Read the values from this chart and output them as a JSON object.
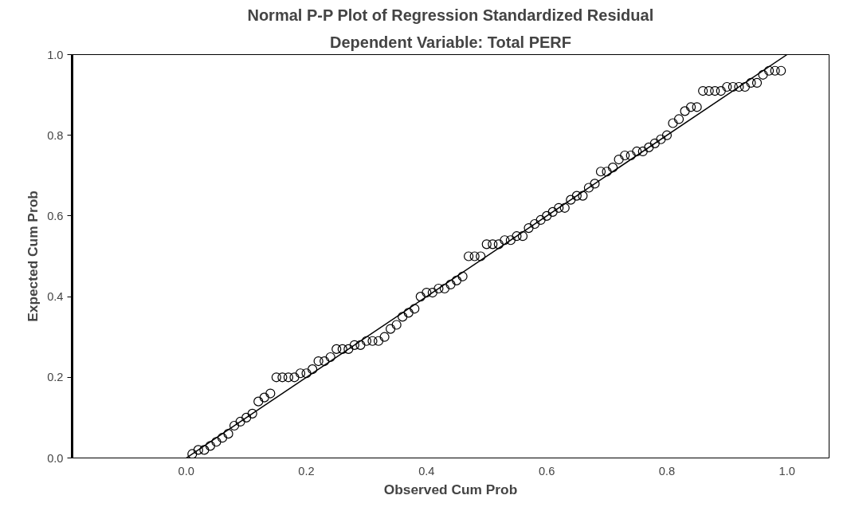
{
  "chart_data": {
    "type": "scatter",
    "title": "Normal P-P Plot of Regression Standardized Residual",
    "subtitle": "Dependent Variable: Total PERF",
    "xlabel": "Observed Cum Prob",
    "ylabel": "Expected Cum Prob",
    "xlim": [
      -0.19,
      1.07
    ],
    "ylim": [
      0,
      1
    ],
    "xticks": [
      {
        "value": 0,
        "label": "0.0"
      },
      0.2,
      0.4,
      0.6,
      0.8,
      {
        "value": 1,
        "label": "1.0"
      }
    ],
    "yticks": [
      {
        "value": 0,
        "label": "0.0"
      },
      0.2,
      0.4,
      0.6,
      0.8,
      {
        "value": 1,
        "label": "1.0"
      }
    ],
    "grid": false,
    "series": [
      {
        "color": "#000000",
        "marker": "circle",
        "x": [
          0.01,
          0.02,
          0.03,
          0.04,
          0.05,
          0.06,
          0.07,
          0.08,
          0.09,
          0.1,
          0.11,
          0.12,
          0.13,
          0.14,
          0.15,
          0.16,
          0.17,
          0.18,
          0.19,
          0.2,
          0.21,
          0.22,
          0.23,
          0.24,
          0.25,
          0.26,
          0.27,
          0.28,
          0.29,
          0.3,
          0.31,
          0.32,
          0.33,
          0.34,
          0.35,
          0.36,
          0.37,
          0.38,
          0.39,
          0.4,
          0.41,
          0.42,
          0.43,
          0.44,
          0.45,
          0.46,
          0.47,
          0.48,
          0.49,
          0.5,
          0.51,
          0.52,
          0.53,
          0.54,
          0.55,
          0.56,
          0.57,
          0.58,
          0.59,
          0.6,
          0.61,
          0.62,
          0.63,
          0.64,
          0.65,
          0.66,
          0.67,
          0.68,
          0.69,
          0.7,
          0.71,
          0.72,
          0.73,
          0.74,
          0.75,
          0.76,
          0.77,
          0.78,
          0.79,
          0.8,
          0.81,
          0.82,
          0.83,
          0.84,
          0.85,
          0.86,
          0.87,
          0.88,
          0.89,
          0.9,
          0.91,
          0.92,
          0.93,
          0.94,
          0.95,
          0.96,
          0.97,
          0.98,
          0.99
        ],
        "values": [
          0.01,
          0.02,
          0.02,
          0.03,
          0.04,
          0.05,
          0.06,
          0.08,
          0.09,
          0.1,
          0.11,
          0.14,
          0.15,
          0.16,
          0.2,
          0.2,
          0.2,
          0.2,
          0.21,
          0.21,
          0.22,
          0.24,
          0.24,
          0.25,
          0.27,
          0.27,
          0.27,
          0.28,
          0.28,
          0.29,
          0.29,
          0.29,
          0.3,
          0.32,
          0.33,
          0.35,
          0.36,
          0.37,
          0.4,
          0.41,
          0.41,
          0.42,
          0.42,
          0.43,
          0.44,
          0.45,
          0.5,
          0.5,
          0.5,
          0.53,
          0.53,
          0.53,
          0.54,
          0.54,
          0.55,
          0.55,
          0.57,
          0.58,
          0.59,
          0.6,
          0.61,
          0.62,
          0.62,
          0.64,
          0.65,
          0.65,
          0.67,
          0.68,
          0.71,
          0.71,
          0.72,
          0.74,
          0.75,
          0.75,
          0.76,
          0.76,
          0.77,
          0.78,
          0.79,
          0.8,
          0.83,
          0.84,
          0.86,
          0.87,
          0.87,
          0.91,
          0.91,
          0.91,
          0.91,
          0.92,
          0.92,
          0.92,
          0.92,
          0.93,
          0.93,
          0.95,
          0.96,
          0.96,
          0.96
        ]
      },
      {
        "type": "line",
        "color": "#000000",
        "x": [
          0,
          1
        ],
        "values": [
          0,
          1
        ]
      }
    ]
  }
}
